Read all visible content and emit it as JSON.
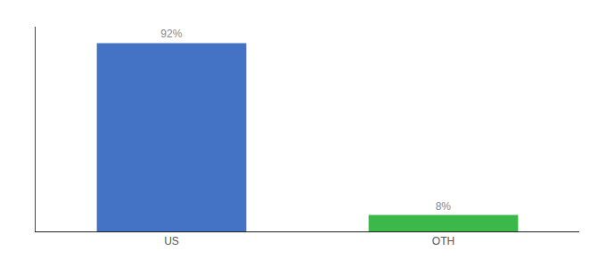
{
  "chart_data": {
    "type": "bar",
    "categories": [
      "US",
      "OTH"
    ],
    "values": [
      92,
      8
    ],
    "value_labels": [
      "92%",
      "8%"
    ],
    "data_labels": true,
    "colors": [
      "#4472c4",
      "#3cb84a"
    ],
    "ylim": [
      0,
      100
    ],
    "tick_labels": "x",
    "grid": false
  }
}
